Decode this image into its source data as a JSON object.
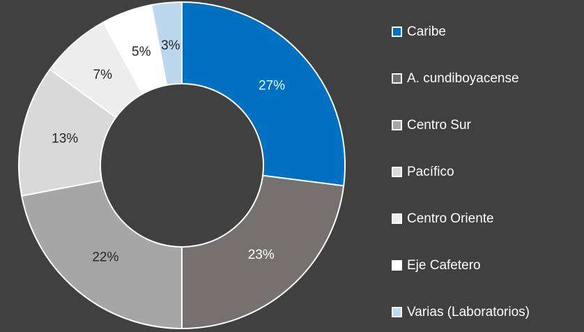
{
  "chart_data": {
    "type": "donut",
    "categories": [
      "Caribe",
      "A. cundiboyacense",
      "Centro Sur",
      "Pacífico",
      "Centro Oriente",
      "Eje Cafetero",
      "Varias (Laboratorios)"
    ],
    "values": [
      27,
      23,
      22,
      13,
      7,
      5,
      3
    ],
    "value_labels": [
      "27%",
      "23%",
      "22%",
      "13%",
      "7%",
      "5%",
      "3%"
    ],
    "colors": [
      "#0070c0",
      "#767171",
      "#a6a6a6",
      "#d9d9d9",
      "#ededed",
      "#ffffff",
      "#bdd7ee"
    ],
    "legend": "right"
  }
}
